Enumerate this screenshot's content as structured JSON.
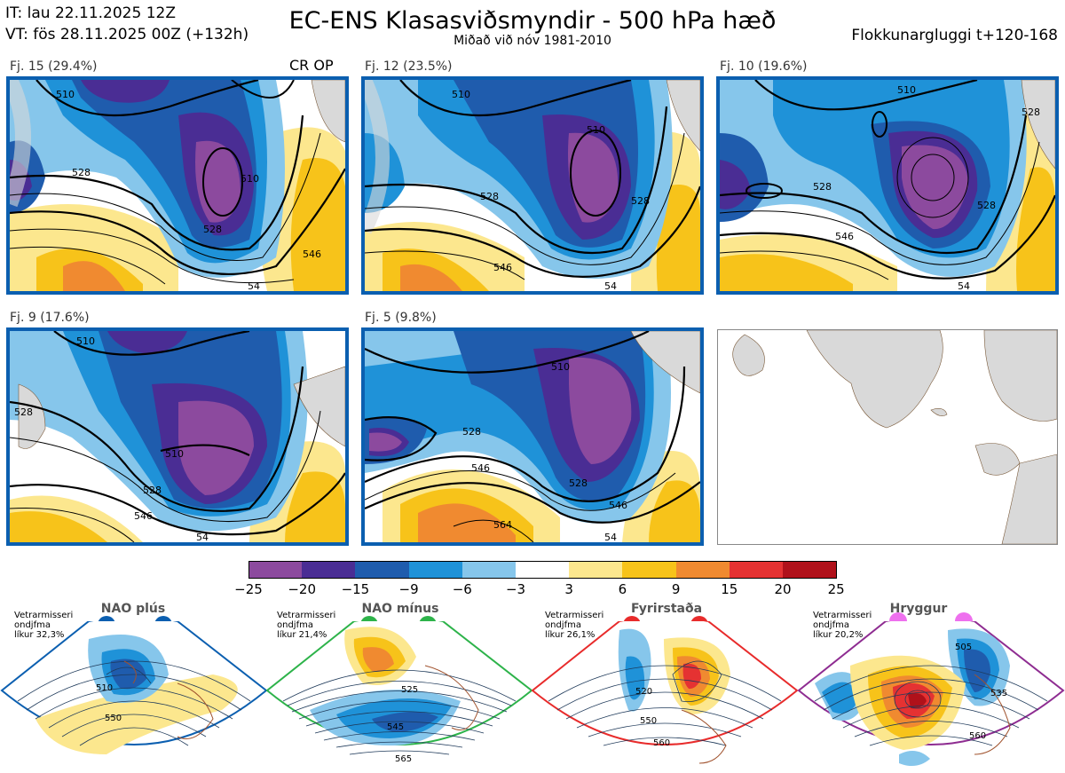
{
  "header": {
    "init_time": "IT: lau 22.11.2025 12Z",
    "valid_time": "VT: fös 28.11.2025 00Z  (+132h)",
    "title": "EC-ENS Klasasviðsmyndir - 500 hPa hæð",
    "subtitle": "Miðað við nóv 1981-2010",
    "window": "Flokkunargluggi t+120-168"
  },
  "panels": [
    {
      "label": "Fj. 15 (29.4%)",
      "extra": "CR OP",
      "contours": [
        "510",
        "528",
        "546",
        "528",
        "510",
        "54"
      ]
    },
    {
      "label": "Fj. 12 (23.5%)",
      "contours": [
        "510",
        "510",
        "528",
        "546",
        "528",
        "54"
      ]
    },
    {
      "label": "Fj. 10 (19.6%)",
      "contours": [
        "510",
        "528",
        "528",
        "546",
        "528",
        "54"
      ]
    },
    {
      "label": "Fj. 9 (17.6%)",
      "contours": [
        "510",
        "528",
        "510",
        "528",
        "546",
        "54"
      ]
    },
    {
      "label": "Fj. 5 (9.8%)",
      "contours": [
        "510",
        "528",
        "546",
        "528",
        "546",
        "564",
        "54"
      ]
    }
  ],
  "colorbar": {
    "ticks": [
      "−25",
      "−20",
      "−15",
      "−9",
      "−6",
      "−3",
      "3",
      "6",
      "9",
      "15",
      "20",
      "25"
    ],
    "colors": [
      "#8c4a9e",
      "#4a2d94",
      "#1f5cad",
      "#1f92d8",
      "#86c6eb",
      "#ffffff",
      "#fce78e",
      "#f7c31a",
      "#f08a30",
      "#e53232",
      "#b0111a"
    ]
  },
  "regimes": [
    {
      "name": "NAO plús",
      "note": [
        "Vetrarmisseri",
        "ondjfma",
        "líkur 32,3%"
      ],
      "color": "#0b5fb0",
      "contours": [
        "510",
        "550"
      ]
    },
    {
      "name": "NAO mínus",
      "note": [
        "Vetrarmisseri",
        "ondjfma",
        "líkur 21,4%"
      ],
      "color": "#2db34a",
      "contours": [
        "525",
        "545",
        "565"
      ]
    },
    {
      "name": "Fyrirstaða",
      "note": [
        "Vetrarmisseri",
        "ondjfma",
        "líkur 26,1%"
      ],
      "color": "#e82b2b",
      "contours": [
        "520",
        "550",
        "560"
      ]
    },
    {
      "name": "Hryggur",
      "note": [
        "Vetrarmisseri",
        "ondjfma",
        "líkur 20,2%"
      ],
      "color": "#8e2c91",
      "contours": [
        "505",
        "535",
        "560"
      ]
    }
  ],
  "colors": {
    "panel_border": "#0b5fb0",
    "land": "#d9d9d9"
  }
}
